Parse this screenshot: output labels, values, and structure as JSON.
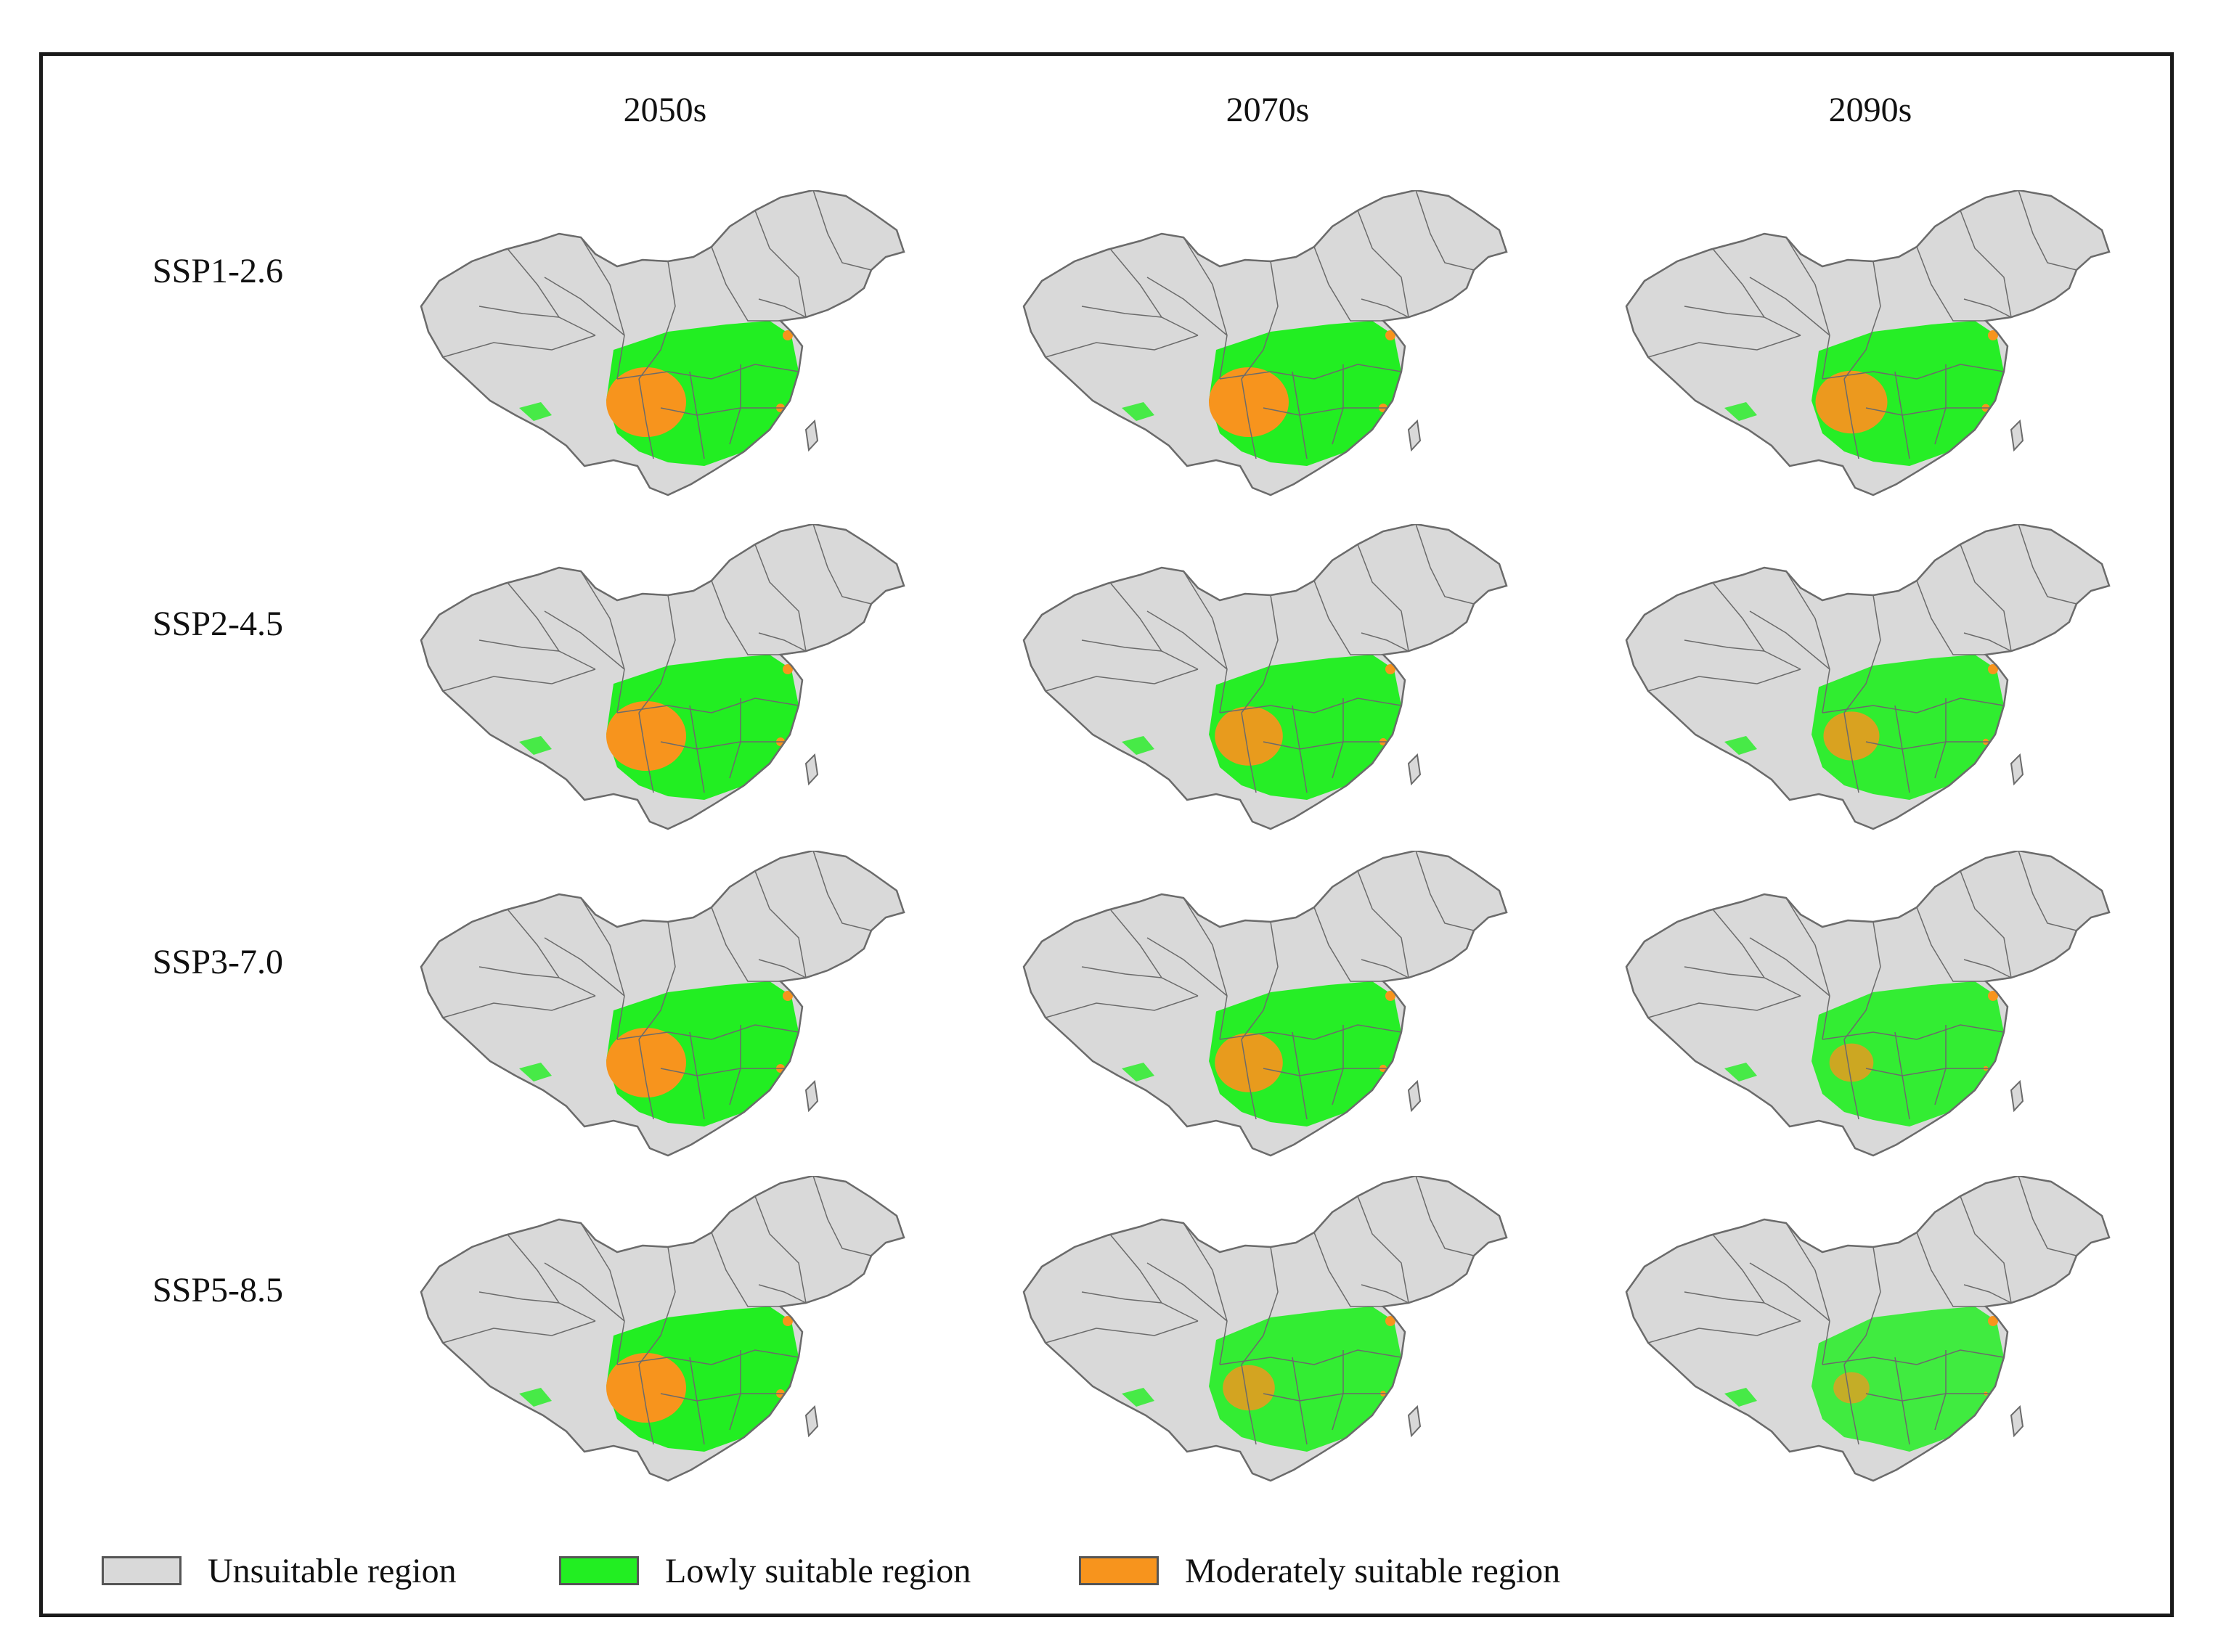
{
  "columns": [
    "2050s",
    "2070s",
    "2090s"
  ],
  "rows": [
    "SSP1-2.6",
    "SSP2-4.5",
    "SSP3-7.0",
    "SSP5-8.5"
  ],
  "legend": [
    {
      "label": "Unsuitable region",
      "color": "#d9d9d9"
    },
    {
      "label": "Lowly suitable region",
      "color": "#22ee22"
    },
    {
      "label": "Moderately suitable region",
      "color": "#f7941d"
    }
  ],
  "colors": {
    "unsuitable": "#d9d9d9",
    "low": "#22ee22",
    "moderate": "#f7941d",
    "border": "#6b6b6b",
    "frame": "#1a1a1a"
  }
}
